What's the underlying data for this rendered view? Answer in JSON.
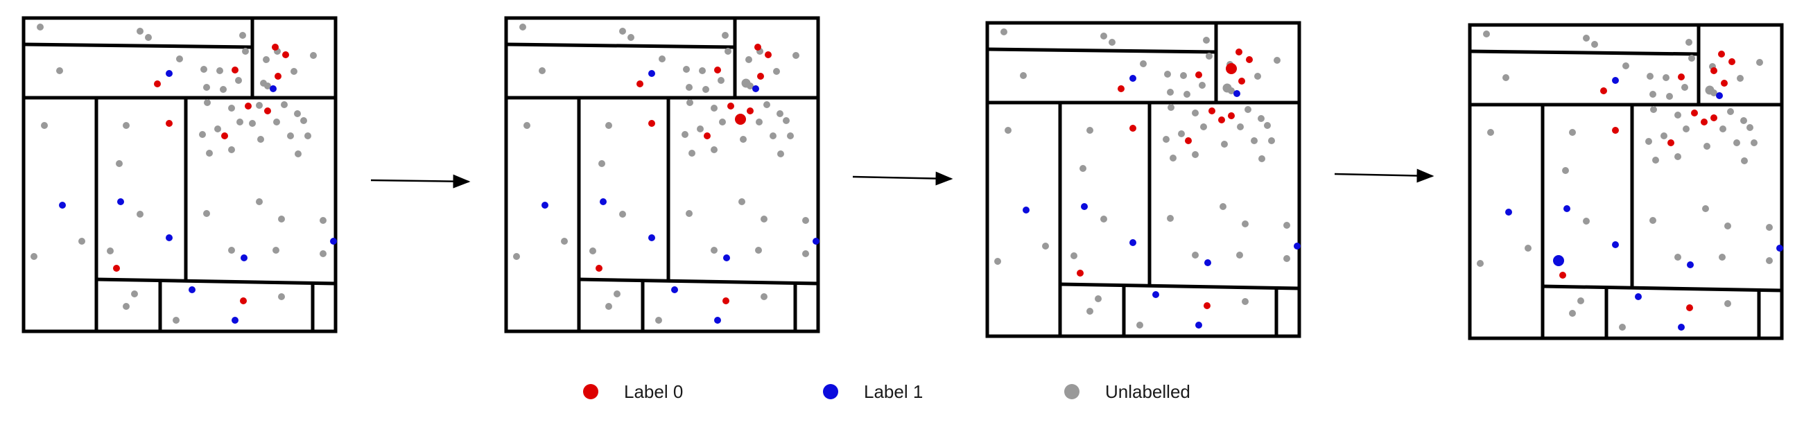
{
  "colors": {
    "label0": "#dd0000",
    "label1": "#0b0bdd",
    "unlabelled": "#999999",
    "frame": "#000000"
  },
  "legend": {
    "items": [
      {
        "key": "label0",
        "label": "Label 0",
        "color": "#dd0000"
      },
      {
        "key": "label1",
        "label": "Label 1",
        "color": "#0b0bdd"
      },
      {
        "key": "unlabelled",
        "label": "Unlabelled",
        "color": "#999999"
      }
    ]
  },
  "arrows": [
    {
      "from_panel": 1,
      "to_panel": 2
    },
    {
      "from_panel": 2,
      "to_panel": 3
    },
    {
      "from_panel": 3,
      "to_panel": 4
    }
  ],
  "panels": [
    {
      "index": 1
    },
    {
      "index": 2
    },
    {
      "index": 3
    },
    {
      "index": 4
    }
  ]
}
